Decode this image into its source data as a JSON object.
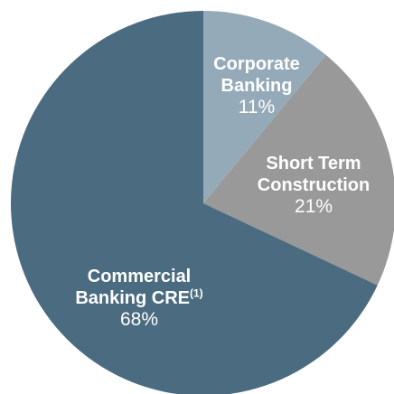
{
  "chart_data": {
    "type": "pie",
    "categories": [
      "Corporate Banking",
      "Short Term Construction",
      "Commercial Banking CRE"
    ],
    "values": [
      11,
      21,
      68
    ],
    "value_labels": [
      "11%",
      "21%",
      "68%"
    ],
    "colors": [
      "#95aab9",
      "#999999",
      "#4b6b80"
    ],
    "annotations": [
      {
        "category": 2,
        "text": "(1)"
      }
    ]
  }
}
